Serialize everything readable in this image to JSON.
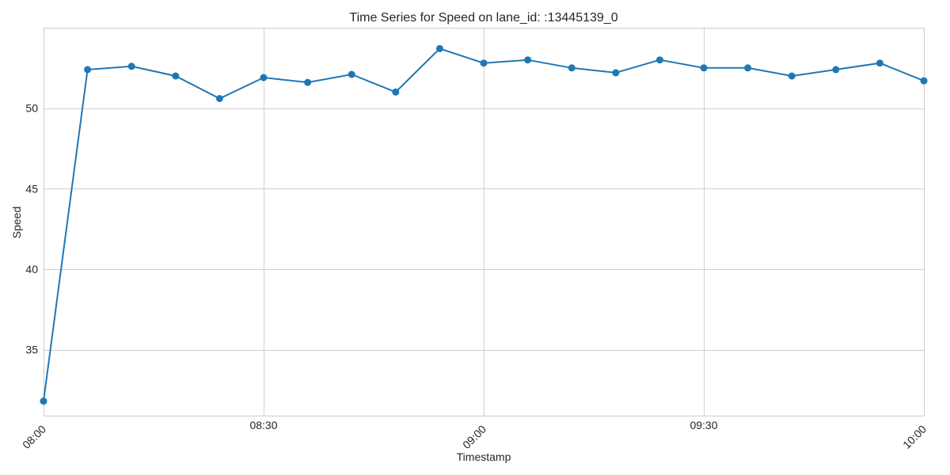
{
  "chart_data": {
    "type": "line",
    "title": "Time Series for Speed on lane_id: :13445139_0",
    "xlabel": "Timestamp",
    "ylabel": "Speed",
    "x_axis": {
      "range": [
        "08:00",
        "10:00"
      ],
      "ticks": [
        {
          "value": "08:00",
          "label": "08:00",
          "rotated": true
        },
        {
          "value": "08:30",
          "label": "08:30",
          "rotated": false
        },
        {
          "value": "09:00",
          "label": "09:00",
          "rotated": true
        },
        {
          "value": "09:30",
          "label": "09:30",
          "rotated": false
        },
        {
          "value": "10:00",
          "label": "10:00",
          "rotated": true
        }
      ]
    },
    "y_axis": {
      "range": [
        30.9,
        55.0
      ],
      "ticks": [
        35,
        40,
        45,
        50
      ]
    },
    "grid": true,
    "series": [
      {
        "color": "#1f77b4",
        "marker": "circle",
        "points": [
          {
            "x": "08:00",
            "y": 31.8
          },
          {
            "x": "08:06",
            "y": 52.4
          },
          {
            "x": "08:12",
            "y": 52.6
          },
          {
            "x": "08:18",
            "y": 52.0
          },
          {
            "x": "08:24",
            "y": 50.6
          },
          {
            "x": "08:30",
            "y": 51.9
          },
          {
            "x": "08:36",
            "y": 51.6
          },
          {
            "x": "08:42",
            "y": 52.1
          },
          {
            "x": "08:48",
            "y": 51.0
          },
          {
            "x": "08:54",
            "y": 53.7
          },
          {
            "x": "09:00",
            "y": 52.8
          },
          {
            "x": "09:06",
            "y": 53.0
          },
          {
            "x": "09:12",
            "y": 52.5
          },
          {
            "x": "09:18",
            "y": 52.2
          },
          {
            "x": "09:24",
            "y": 53.0
          },
          {
            "x": "09:30",
            "y": 52.5
          },
          {
            "x": "09:36",
            "y": 52.5
          },
          {
            "x": "09:42",
            "y": 52.0
          },
          {
            "x": "09:48",
            "y": 52.4
          },
          {
            "x": "09:54",
            "y": 52.8
          },
          {
            "x": "10:00",
            "y": 51.7
          }
        ]
      }
    ]
  }
}
